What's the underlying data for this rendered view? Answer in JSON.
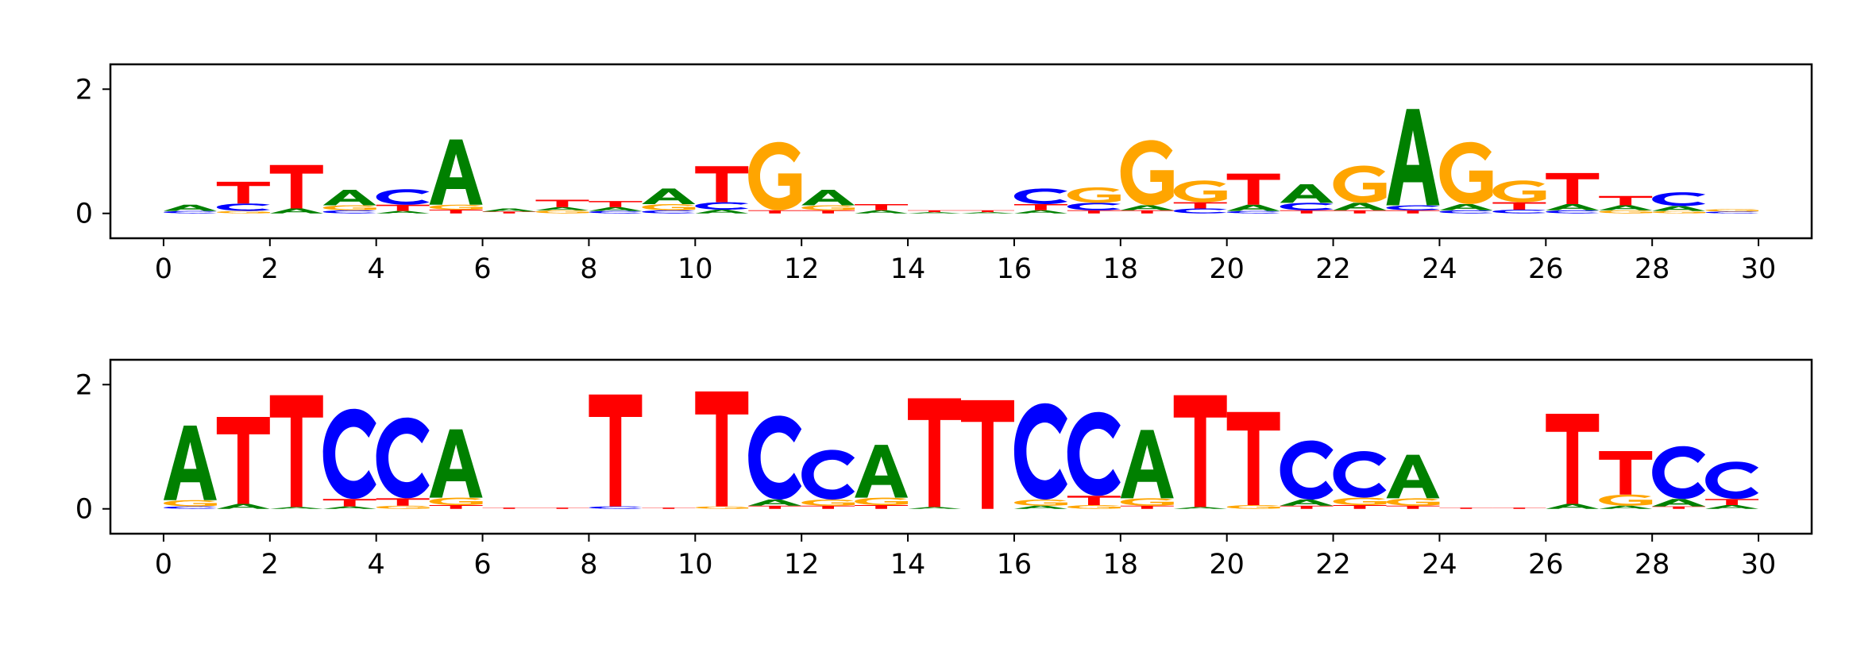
{
  "colors": {
    "A": "#008000",
    "C": "#0000ff",
    "G": "#ffa500",
    "T": "#ff0000"
  },
  "chart_data": [
    {
      "type": "sequence-logo",
      "x_ticks": [
        "0",
        "2",
        "4",
        "6",
        "8",
        "10",
        "12",
        "14",
        "16",
        "18",
        "20",
        "22",
        "24",
        "26",
        "28",
        "30"
      ],
      "y_ticks": [
        "0",
        "2"
      ],
      "xlim": [
        -1,
        31
      ],
      "ylim": [
        -0.4,
        2.4
      ],
      "positions": [
        {
          "x": 0.5,
          "letters": [
            {
              "b": "A",
              "h": 0.1
            },
            {
              "b": "C",
              "h": 0.04
            }
          ]
        },
        {
          "x": 1.5,
          "letters": [
            {
              "b": "T",
              "h": 0.35
            },
            {
              "b": "C",
              "h": 0.12
            },
            {
              "b": "G",
              "h": 0.04
            }
          ]
        },
        {
          "x": 2.5,
          "letters": [
            {
              "b": "T",
              "h": 0.7
            },
            {
              "b": "A",
              "h": 0.08
            }
          ]
        },
        {
          "x": 3.5,
          "letters": [
            {
              "b": "A",
              "h": 0.25
            },
            {
              "b": "G",
              "h": 0.08
            },
            {
              "b": "C",
              "h": 0.05
            }
          ]
        },
        {
          "x": 4.5,
          "letters": [
            {
              "b": "C",
              "h": 0.25
            },
            {
              "b": "T",
              "h": 0.1
            },
            {
              "b": "A",
              "h": 0.04
            }
          ]
        },
        {
          "x": 5.5,
          "letters": [
            {
              "b": "A",
              "h": 1.05
            },
            {
              "b": "G",
              "h": 0.08
            },
            {
              "b": "T",
              "h": 0.06
            }
          ]
        },
        {
          "x": 6.5,
          "letters": [
            {
              "b": "A",
              "h": 0.05
            },
            {
              "b": "T",
              "h": 0.03
            }
          ]
        },
        {
          "x": 7.5,
          "letters": [
            {
              "b": "T",
              "h": 0.12
            },
            {
              "b": "G",
              "h": 0.05
            },
            {
              "b": "A",
              "h": 0.05
            }
          ]
        },
        {
          "x": 8.5,
          "letters": [
            {
              "b": "T",
              "h": 0.1
            },
            {
              "b": "A",
              "h": 0.06
            },
            {
              "b": "C",
              "h": 0.04
            }
          ]
        },
        {
          "x": 9.5,
          "letters": [
            {
              "b": "A",
              "h": 0.25
            },
            {
              "b": "G",
              "h": 0.1
            },
            {
              "b": "C",
              "h": 0.05
            }
          ]
        },
        {
          "x": 10.5,
          "letters": [
            {
              "b": "T",
              "h": 0.58
            },
            {
              "b": "C",
              "h": 0.12
            },
            {
              "b": "A",
              "h": 0.06
            }
          ]
        },
        {
          "x": 11.5,
          "letters": [
            {
              "b": "G",
              "h": 1.1
            },
            {
              "b": "T",
              "h": 0.05
            }
          ]
        },
        {
          "x": 12.5,
          "letters": [
            {
              "b": "A",
              "h": 0.25
            },
            {
              "b": "G",
              "h": 0.08
            },
            {
              "b": "T",
              "h": 0.05
            }
          ]
        },
        {
          "x": 13.5,
          "letters": [
            {
              "b": "T",
              "h": 0.1
            },
            {
              "b": "A",
              "h": 0.05
            }
          ]
        },
        {
          "x": 14.5,
          "letters": [
            {
              "b": "T",
              "h": 0.03
            },
            {
              "b": "A",
              "h": 0.02
            }
          ]
        },
        {
          "x": 15.5,
          "letters": [
            {
              "b": "T",
              "h": 0.03
            },
            {
              "b": "A",
              "h": 0.02
            }
          ]
        },
        {
          "x": 16.5,
          "letters": [
            {
              "b": "C",
              "h": 0.25
            },
            {
              "b": "T",
              "h": 0.1
            },
            {
              "b": "A",
              "h": 0.05
            }
          ]
        },
        {
          "x": 17.5,
          "letters": [
            {
              "b": "G",
              "h": 0.25
            },
            {
              "b": "C",
              "h": 0.12
            },
            {
              "b": "T",
              "h": 0.05
            }
          ]
        },
        {
          "x": 18.5,
          "letters": [
            {
              "b": "G",
              "h": 1.05
            },
            {
              "b": "A",
              "h": 0.08
            },
            {
              "b": "T",
              "h": 0.05
            }
          ]
        },
        {
          "x": 19.5,
          "letters": [
            {
              "b": "G",
              "h": 0.35
            },
            {
              "b": "T",
              "h": 0.1
            },
            {
              "b": "C",
              "h": 0.08
            }
          ]
        },
        {
          "x": 20.5,
          "letters": [
            {
              "b": "T",
              "h": 0.5
            },
            {
              "b": "A",
              "h": 0.1
            },
            {
              "b": "C",
              "h": 0.04
            }
          ]
        },
        {
          "x": 21.5,
          "letters": [
            {
              "b": "A",
              "h": 0.3
            },
            {
              "b": "C",
              "h": 0.12
            },
            {
              "b": "T",
              "h": 0.05
            }
          ]
        },
        {
          "x": 22.5,
          "letters": [
            {
              "b": "G",
              "h": 0.6
            },
            {
              "b": "A",
              "h": 0.12
            },
            {
              "b": "T",
              "h": 0.05
            }
          ]
        },
        {
          "x": 23.5,
          "letters": [
            {
              "b": "A",
              "h": 1.55
            },
            {
              "b": "C",
              "h": 0.08
            },
            {
              "b": "T",
              "h": 0.05
            }
          ]
        },
        {
          "x": 24.5,
          "letters": [
            {
              "b": "G",
              "h": 1.0
            },
            {
              "b": "A",
              "h": 0.1
            },
            {
              "b": "C",
              "h": 0.05
            }
          ]
        },
        {
          "x": 25.5,
          "letters": [
            {
              "b": "G",
              "h": 0.35
            },
            {
              "b": "T",
              "h": 0.12
            },
            {
              "b": "C",
              "h": 0.06
            }
          ]
        },
        {
          "x": 26.5,
          "letters": [
            {
              "b": "T",
              "h": 0.5
            },
            {
              "b": "A",
              "h": 0.1
            },
            {
              "b": "C",
              "h": 0.05
            }
          ]
        },
        {
          "x": 27.5,
          "letters": [
            {
              "b": "T",
              "h": 0.15
            },
            {
              "b": "A",
              "h": 0.08
            },
            {
              "b": "G",
              "h": 0.05
            }
          ]
        },
        {
          "x": 28.5,
          "letters": [
            {
              "b": "C",
              "h": 0.22
            },
            {
              "b": "A",
              "h": 0.08
            },
            {
              "b": "G",
              "h": 0.04
            }
          ]
        },
        {
          "x": 29.5,
          "letters": [
            {
              "b": "G",
              "h": 0.04
            },
            {
              "b": "C",
              "h": 0.03
            }
          ]
        }
      ]
    },
    {
      "type": "sequence-logo",
      "x_ticks": [
        "0",
        "2",
        "4",
        "6",
        "8",
        "10",
        "12",
        "14",
        "16",
        "18",
        "20",
        "22",
        "24",
        "26",
        "28",
        "30"
      ],
      "y_ticks": [
        "0",
        "2"
      ],
      "xlim": [
        -1,
        31
      ],
      "ylim": [
        -0.4,
        2.4
      ],
      "positions": [
        {
          "x": 0.5,
          "letters": [
            {
              "b": "A",
              "h": 1.2
            },
            {
              "b": "G",
              "h": 0.1
            },
            {
              "b": "C",
              "h": 0.04
            }
          ]
        },
        {
          "x": 1.5,
          "letters": [
            {
              "b": "T",
              "h": 1.4
            },
            {
              "b": "A",
              "h": 0.08
            }
          ]
        },
        {
          "x": 2.5,
          "letters": [
            {
              "b": "T",
              "h": 1.8
            },
            {
              "b": "A",
              "h": 0.03
            }
          ]
        },
        {
          "x": 3.5,
          "letters": [
            {
              "b": "C",
              "h": 1.45
            },
            {
              "b": "T",
              "h": 0.12
            },
            {
              "b": "A",
              "h": 0.04
            }
          ]
        },
        {
          "x": 4.5,
          "letters": [
            {
              "b": "C",
              "h": 1.3
            },
            {
              "b": "T",
              "h": 0.12
            },
            {
              "b": "G",
              "h": 0.05
            }
          ]
        },
        {
          "x": 5.5,
          "letters": [
            {
              "b": "A",
              "h": 1.1
            },
            {
              "b": "G",
              "h": 0.12
            },
            {
              "b": "T",
              "h": 0.06
            }
          ]
        },
        {
          "x": 6.5,
          "letters": [
            {
              "b": "T",
              "h": 0.02
            }
          ]
        },
        {
          "x": 7.5,
          "letters": [
            {
              "b": "T",
              "h": 0.02
            }
          ]
        },
        {
          "x": 8.5,
          "letters": [
            {
              "b": "T",
              "h": 1.8
            },
            {
              "b": "C",
              "h": 0.04
            }
          ]
        },
        {
          "x": 9.5,
          "letters": [
            {
              "b": "T",
              "h": 0.02
            }
          ]
        },
        {
          "x": 10.5,
          "letters": [
            {
              "b": "T",
              "h": 1.85
            },
            {
              "b": "G",
              "h": 0.04
            }
          ]
        },
        {
          "x": 11.5,
          "letters": [
            {
              "b": "C",
              "h": 1.35
            },
            {
              "b": "A",
              "h": 0.1
            },
            {
              "b": "T",
              "h": 0.05
            }
          ]
        },
        {
          "x": 12.5,
          "letters": [
            {
              "b": "C",
              "h": 0.8
            },
            {
              "b": "G",
              "h": 0.1
            },
            {
              "b": "T",
              "h": 0.05
            }
          ]
        },
        {
          "x": 13.5,
          "letters": [
            {
              "b": "A",
              "h": 0.85
            },
            {
              "b": "G",
              "h": 0.12
            },
            {
              "b": "T",
              "h": 0.06
            }
          ]
        },
        {
          "x": 14.5,
          "letters": [
            {
              "b": "T",
              "h": 1.75
            },
            {
              "b": "A",
              "h": 0.03
            }
          ]
        },
        {
          "x": 15.5,
          "letters": [
            {
              "b": "T",
              "h": 1.75
            }
          ]
        },
        {
          "x": 16.5,
          "letters": [
            {
              "b": "C",
              "h": 1.55
            },
            {
              "b": "G",
              "h": 0.1
            },
            {
              "b": "A",
              "h": 0.05
            }
          ]
        },
        {
          "x": 17.5,
          "letters": [
            {
              "b": "C",
              "h": 1.35
            },
            {
              "b": "T",
              "h": 0.15
            },
            {
              "b": "G",
              "h": 0.06
            }
          ]
        },
        {
          "x": 18.5,
          "letters": [
            {
              "b": "A",
              "h": 1.1
            },
            {
              "b": "G",
              "h": 0.12
            },
            {
              "b": "T",
              "h": 0.05
            }
          ]
        },
        {
          "x": 19.5,
          "letters": [
            {
              "b": "T",
              "h": 1.8
            },
            {
              "b": "A",
              "h": 0.03
            }
          ]
        },
        {
          "x": 20.5,
          "letters": [
            {
              "b": "T",
              "h": 1.5
            },
            {
              "b": "G",
              "h": 0.06
            }
          ]
        },
        {
          "x": 21.5,
          "letters": [
            {
              "b": "C",
              "h": 0.95
            },
            {
              "b": "A",
              "h": 0.1
            },
            {
              "b": "T",
              "h": 0.05
            }
          ]
        },
        {
          "x": 22.5,
          "letters": [
            {
              "b": "C",
              "h": 0.75
            },
            {
              "b": "G",
              "h": 0.12
            },
            {
              "b": "T",
              "h": 0.06
            }
          ]
        },
        {
          "x": 23.5,
          "letters": [
            {
              "b": "A",
              "h": 0.7
            },
            {
              "b": "G",
              "h": 0.12
            },
            {
              "b": "T",
              "h": 0.05
            }
          ]
        },
        {
          "x": 24.5,
          "letters": [
            {
              "b": "T",
              "h": 0.02
            }
          ]
        },
        {
          "x": 25.5,
          "letters": [
            {
              "b": "T",
              "h": 0.02
            }
          ]
        },
        {
          "x": 26.5,
          "letters": [
            {
              "b": "T",
              "h": 1.45
            },
            {
              "b": "A",
              "h": 0.08
            }
          ]
        },
        {
          "x": 27.5,
          "letters": [
            {
              "b": "T",
              "h": 0.7
            },
            {
              "b": "G",
              "h": 0.18
            },
            {
              "b": "A",
              "h": 0.05
            }
          ]
        },
        {
          "x": 28.5,
          "letters": [
            {
              "b": "C",
              "h": 0.85
            },
            {
              "b": "A",
              "h": 0.12
            },
            {
              "b": "T",
              "h": 0.04
            }
          ]
        },
        {
          "x": 29.5,
          "letters": [
            {
              "b": "C",
              "h": 0.6
            },
            {
              "b": "T",
              "h": 0.1
            },
            {
              "b": "A",
              "h": 0.06
            }
          ]
        }
      ]
    }
  ]
}
